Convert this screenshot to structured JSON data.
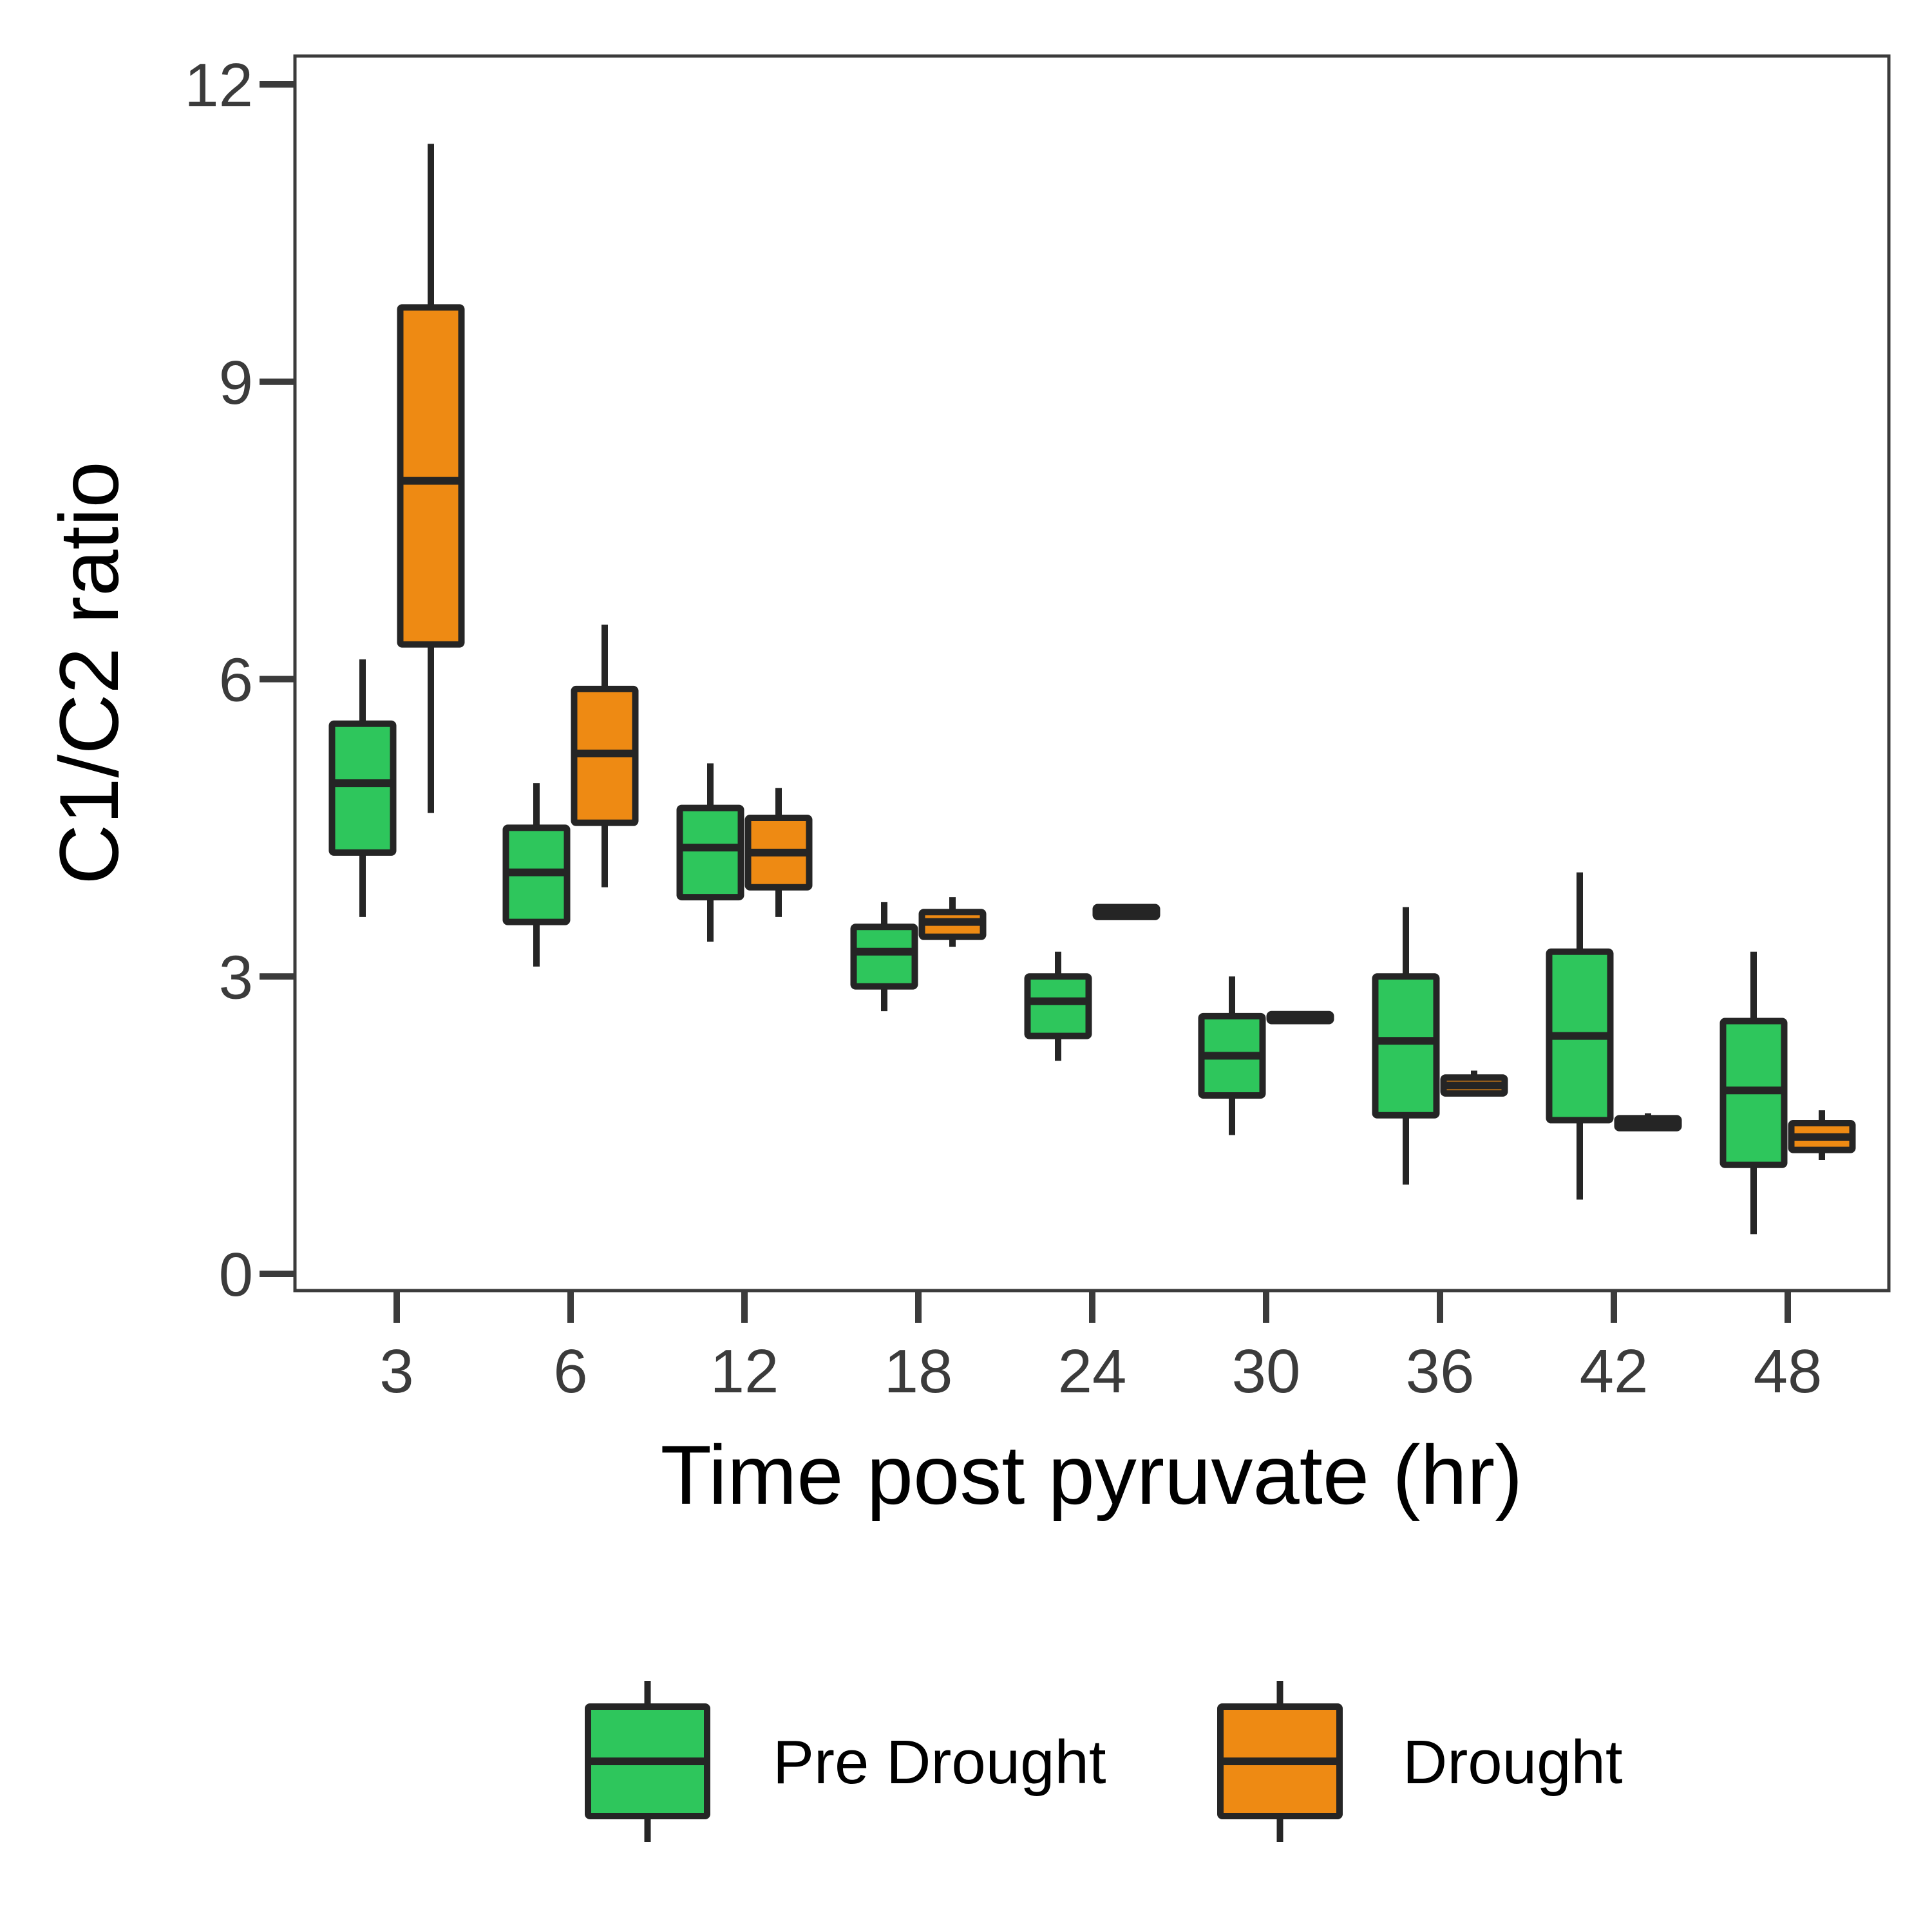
{
  "chart_data": {
    "type": "boxplot",
    "xlabel": "Time post pyruvate (hr)",
    "ylabel": "C1/C2 ratio",
    "categories": [
      "3",
      "6",
      "12",
      "18",
      "24",
      "30",
      "36",
      "42",
      "48"
    ],
    "ylim": [
      0,
      12
    ],
    "yticks": [
      "0",
      "3",
      "6",
      "9",
      "12"
    ],
    "grid": false,
    "legend_position": "bottom",
    "colors": {
      "Pre Drought": "#2ec65c",
      "Drought": "#ee8a13",
      "outline": "#252525",
      "frame": "#3b3b3b"
    },
    "series": [
      {
        "name": "Pre Drought",
        "boxes": [
          {
            "category": "3",
            "min": 3.6,
            "q1": 4.25,
            "median": 4.95,
            "q3": 5.55,
            "max": 6.2
          },
          {
            "category": "6",
            "min": 3.1,
            "q1": 3.55,
            "median": 4.05,
            "q3": 4.5,
            "max": 4.95
          },
          {
            "category": "12",
            "min": 3.35,
            "q1": 3.8,
            "median": 4.3,
            "q3": 4.7,
            "max": 5.15
          },
          {
            "category": "18",
            "min": 2.65,
            "q1": 2.9,
            "median": 3.25,
            "q3": 3.5,
            "max": 3.75
          },
          {
            "category": "24",
            "min": 2.15,
            "q1": 2.4,
            "median": 2.75,
            "q3": 3.0,
            "max": 3.25
          },
          {
            "category": "30",
            "min": 1.4,
            "q1": 1.8,
            "median": 2.2,
            "q3": 2.6,
            "max": 3.0
          },
          {
            "category": "36",
            "min": 0.9,
            "q1": 1.6,
            "median": 2.35,
            "q3": 3.0,
            "max": 3.7
          },
          {
            "category": "42",
            "min": 0.75,
            "q1": 1.55,
            "median": 2.4,
            "q3": 3.25,
            "max": 4.05
          },
          {
            "category": "48",
            "min": 0.4,
            "q1": 1.1,
            "median": 1.85,
            "q3": 2.55,
            "max": 3.25
          }
        ]
      },
      {
        "name": "Drought",
        "boxes": [
          {
            "category": "3",
            "min": 4.65,
            "q1": 6.35,
            "median": 8.0,
            "q3": 9.75,
            "max": 11.4
          },
          {
            "category": "6",
            "min": 3.9,
            "q1": 4.55,
            "median": 5.25,
            "q3": 5.9,
            "max": 6.55
          },
          {
            "category": "12",
            "min": 3.6,
            "q1": 3.9,
            "median": 4.25,
            "q3": 4.6,
            "max": 4.9
          },
          {
            "category": "18",
            "min": 3.3,
            "q1": 3.4,
            "median": 3.55,
            "q3": 3.65,
            "max": 3.8
          },
          {
            "category": "24",
            "min": 3.6,
            "q1": 3.6,
            "median": 3.65,
            "q3": 3.7,
            "max": 3.7
          },
          {
            "category": "30",
            "min": 2.55,
            "q1": 2.55,
            "median": 2.58,
            "q3": 2.62,
            "max": 2.62
          },
          {
            "category": "36",
            "min": 1.8,
            "q1": 1.82,
            "median": 1.9,
            "q3": 1.98,
            "max": 2.05
          },
          {
            "category": "42",
            "min": 1.45,
            "q1": 1.47,
            "median": 1.52,
            "q3": 1.57,
            "max": 1.62
          },
          {
            "category": "48",
            "min": 1.15,
            "q1": 1.25,
            "median": 1.38,
            "q3": 1.52,
            "max": 1.65
          }
        ]
      }
    ]
  }
}
